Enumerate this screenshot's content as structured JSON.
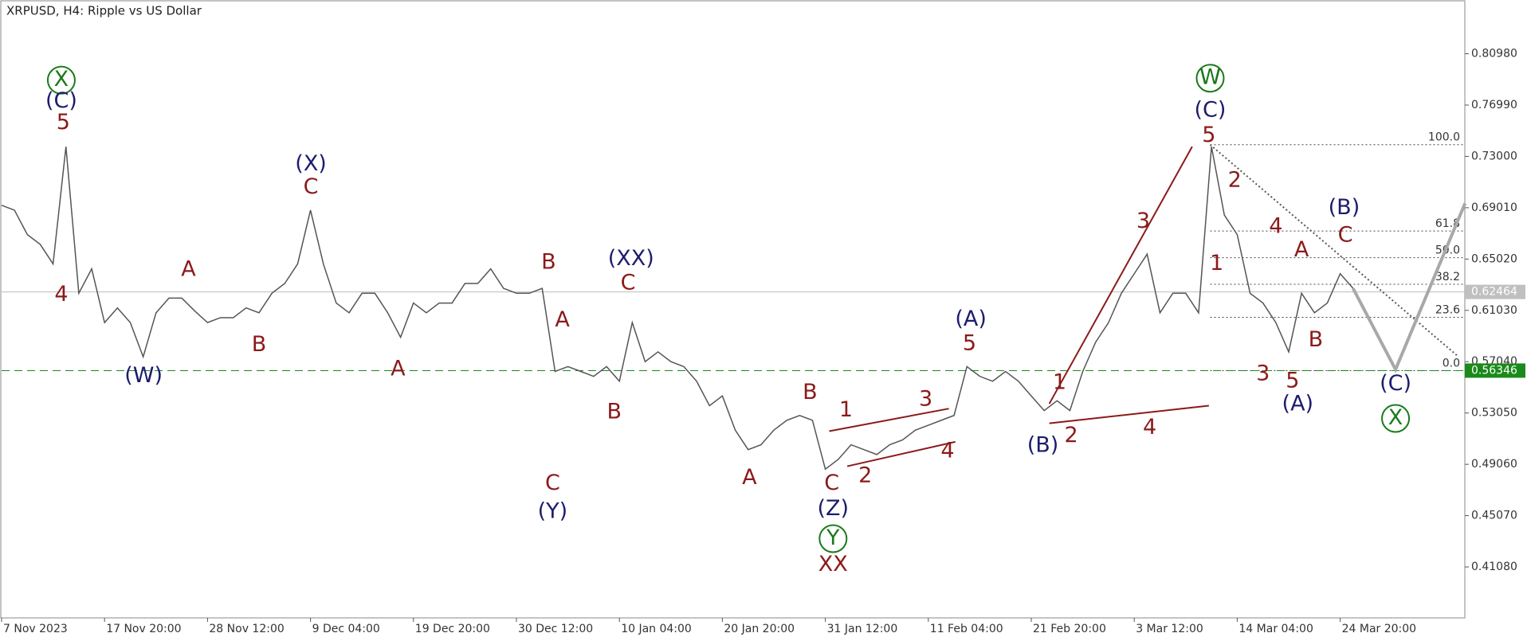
{
  "chart_data": {
    "type": "line",
    "title": "XRPUSD, H4:  Ripple vs US Dollar",
    "color": "#555555",
    "categories": [
      "7 Nov 2023",
      null,
      null,
      null,
      null,
      null,
      null,
      null,
      "17 Nov 20:00",
      null,
      null,
      null,
      null,
      null,
      null,
      null,
      "28 Nov 12:00",
      null,
      null,
      null,
      null,
      null,
      null,
      null,
      "9 Dec 04:00",
      null,
      null,
      null,
      null,
      null,
      null,
      null,
      "19 Dec 20:00",
      null,
      null,
      null,
      null,
      null,
      null,
      null,
      "30 Dec 12:00",
      null,
      null,
      null,
      null,
      null,
      null,
      null,
      "10 Jan 04:00",
      null,
      null,
      null,
      null,
      null,
      null,
      null,
      "20 Jan 20:00",
      null,
      null,
      null,
      null,
      null,
      null,
      null,
      "31 Jan 12:00",
      null,
      null,
      null,
      null,
      null,
      null,
      null,
      "11 Feb 04:00",
      null,
      null,
      null,
      null,
      null,
      null,
      null,
      "21 Feb 20:00",
      null,
      null,
      null,
      null,
      null,
      null,
      null,
      "3 Mar 12:00",
      null,
      null,
      null,
      null,
      null,
      null,
      null,
      "14 Mar 04:00",
      null,
      null,
      null,
      null,
      null,
      null,
      null,
      "24 Mar 20:00",
      null,
      null,
      null,
      null,
      null,
      null,
      null,
      null,
      null
    ],
    "values": [
      0.692,
      0.6882,
      0.6692,
      0.6616,
      0.6464,
      0.7376,
      0.6236,
      0.6426,
      0.6008,
      0.6122,
      0.6008,
      0.5742,
      0.6084,
      0.6198,
      0.6198,
      0.6099,
      0.6008,
      0.6046,
      0.6046,
      0.6122,
      0.6084,
      0.6236,
      0.6312,
      0.6464,
      0.6882,
      0.6464,
      0.616,
      0.6084,
      0.6236,
      0.6236,
      0.6084,
      0.5894,
      0.616,
      0.6084,
      0.616,
      0.616,
      0.6312,
      0.6312,
      0.6426,
      0.6274,
      0.6236,
      0.6236,
      0.6274,
      0.5628,
      0.5666,
      0.5628,
      0.559,
      0.5666,
      0.5552,
      0.6008,
      0.5704,
      0.578,
      0.5704,
      0.5666,
      0.5552,
      0.5362,
      0.5438,
      0.5172,
      0.502,
      0.5058,
      0.5172,
      0.5248,
      0.5286,
      0.5248,
      0.4868,
      0.4944,
      0.5058,
      0.502,
      0.4982,
      0.5058,
      0.5096,
      0.5172,
      0.521,
      0.5248,
      0.5286,
      0.5666,
      0.559,
      0.5552,
      0.5628,
      0.5552,
      0.5438,
      0.5324,
      0.54,
      0.5324,
      0.5628,
      0.5856,
      0.6008,
      0.6236,
      0.6388,
      0.654,
      0.6084,
      0.6236,
      0.6236,
      0.6084,
      0.7376,
      0.6844,
      0.6692,
      0.6236,
      0.616,
      0.6008,
      0.578,
      0.6236,
      0.6084,
      0.616,
      0.6388,
      0.6274,
      null,
      null,
      null,
      null,
      null,
      null,
      null,
      null
    ],
    "ylim": [
      0.3712,
      0.8516
    ],
    "yticks": [
      {
        "value": 0.8098,
        "label": "0.80980"
      },
      {
        "value": 0.7699,
        "label": "0.76990"
      },
      {
        "value": 0.73,
        "label": "0.73000"
      },
      {
        "value": 0.6901,
        "label": "0.69010"
      },
      {
        "value": 0.6502,
        "label": "0.65020"
      },
      {
        "value": 0.6103,
        "label": "0.61030"
      },
      {
        "value": 0.5704,
        "label": "0.57040"
      },
      {
        "value": 0.5305,
        "label": "0.53050"
      },
      {
        "value": 0.4906,
        "label": "0.49060"
      },
      {
        "value": 0.4507,
        "label": "0.45070"
      },
      {
        "value": 0.4108,
        "label": "0.41080"
      }
    ],
    "current_price": {
      "value": 0.62464,
      "label": "0.62464"
    },
    "level_line": {
      "value": 0.56346,
      "label": "0.56346",
      "color": "#1a8a1a"
    },
    "fibonacci": {
      "high": 0.7391,
      "low": 0.56346,
      "start": 93.9,
      "levels": [
        {
          "value": 100,
          "label": "100.0"
        },
        61.8,
        {
          "value": 50,
          "label": "50.0"
        },
        38.2,
        23.6,
        {
          "value": 0,
          "label": "0.0"
        }
      ]
    },
    "trend_lines": [
      {
        "color": "#8b1a1a",
        "points": [
          [
            64.3,
            0.5164
          ],
          [
            73.6,
            0.5339
          ]
        ]
      },
      {
        "color": "#8b1a1a",
        "points": [
          [
            65.7,
            0.4891
          ],
          [
            74.1,
            0.5081
          ]
        ]
      },
      {
        "color": "#8b1a1a",
        "points": [
          [
            81.4,
            0.5377
          ],
          [
            92.5,
            0.7376
          ]
        ]
      },
      {
        "color": "#8b1a1a",
        "points": [
          [
            81.4,
            0.5225
          ],
          [
            93.8,
            0.5362
          ]
        ]
      },
      {
        "color": "#555555",
        "dashed": true,
        "points": [
          [
            93.9,
            0.7391
          ],
          [
            113.2,
            0.5742
          ]
        ]
      },
      {
        "color": "#a8a8a8",
        "width": 4,
        "points": [
          [
            105.0,
            0.6274
          ],
          [
            108.3,
            0.5643
          ],
          [
            113.7,
            0.6935
          ]
        ]
      }
    ],
    "annotations": [
      {
        "text": "X",
        "x": 4.64,
        "y": 0.7893,
        "color": "#1a7a1a",
        "circled": true
      },
      {
        "text": "(C)",
        "x": 4.64,
        "y": 0.7726,
        "color": "#1c1c6e"
      },
      {
        "text": "5",
        "x": 4.79,
        "y": 0.7558,
        "color": "#8b1a1a"
      },
      {
        "text": "4",
        "x": 4.64,
        "y": 0.6221,
        "color": "#8b1a1a"
      },
      {
        "text": "(W)",
        "x": 11.03,
        "y": 0.559,
        "color": "#1c1c6e"
      },
      {
        "text": "A",
        "x": 14.52,
        "y": 0.6418,
        "color": "#8b1a1a"
      },
      {
        "text": "B",
        "x": 20.0,
        "y": 0.5833,
        "color": "#8b1a1a"
      },
      {
        "text": "(X)",
        "x": 24.03,
        "y": 0.7239,
        "color": "#1c1c6e"
      },
      {
        "text": "C",
        "x": 24.03,
        "y": 0.7057,
        "color": "#8b1a1a"
      },
      {
        "text": "A",
        "x": 30.8,
        "y": 0.5643,
        "color": "#8b1a1a"
      },
      {
        "text": "B",
        "x": 42.5,
        "y": 0.6472,
        "color": "#8b1a1a"
      },
      {
        "text": "(XX)",
        "x": 48.9,
        "y": 0.6502,
        "color": "#1c1c6e"
      },
      {
        "text": "C",
        "x": 48.67,
        "y": 0.6312,
        "color": "#8b1a1a"
      },
      {
        "text": "A",
        "x": 43.57,
        "y": 0.6023,
        "color": "#8b1a1a"
      },
      {
        "text": "B",
        "x": 47.6,
        "y": 0.5309,
        "color": "#8b1a1a"
      },
      {
        "text": "C",
        "x": 42.81,
        "y": 0.4754,
        "color": "#8b1a1a"
      },
      {
        "text": "(Y)",
        "x": 42.81,
        "y": 0.4534,
        "color": "#1c1c6e"
      },
      {
        "text": "A",
        "x": 58.1,
        "y": 0.48,
        "color": "#8b1a1a"
      },
      {
        "text": "B",
        "x": 62.81,
        "y": 0.5461,
        "color": "#8b1a1a"
      },
      {
        "text": "1",
        "x": 65.6,
        "y": 0.5324,
        "color": "#8b1a1a"
      },
      {
        "text": "3",
        "x": 71.8,
        "y": 0.5408,
        "color": "#8b1a1a"
      },
      {
        "text": "2",
        "x": 67.1,
        "y": 0.4815,
        "color": "#8b1a1a"
      },
      {
        "text": "4",
        "x": 73.5,
        "y": 0.5005,
        "color": "#8b1a1a"
      },
      {
        "text": "C",
        "x": 64.5,
        "y": 0.4754,
        "color": "#8b1a1a"
      },
      {
        "text": "(Z)",
        "x": 64.6,
        "y": 0.4556,
        "color": "#1c1c6e"
      },
      {
        "text": "Y",
        "x": 64.6,
        "y": 0.4328,
        "color": "#1a7a1a",
        "circled": true
      },
      {
        "text": "XX",
        "x": 64.6,
        "y": 0.4123,
        "color": "#8b1a1a"
      },
      {
        "text": "(A)",
        "x": 75.3,
        "y": 0.6031,
        "color": "#1c1c6e"
      },
      {
        "text": "5",
        "x": 75.2,
        "y": 0.5841,
        "color": "#8b1a1a"
      },
      {
        "text": "(B)",
        "x": 80.9,
        "y": 0.505,
        "color": "#1c1c6e"
      },
      {
        "text": "1",
        "x": 82.2,
        "y": 0.5537,
        "color": "#8b1a1a"
      },
      {
        "text": "2",
        "x": 83.1,
        "y": 0.5126,
        "color": "#8b1a1a"
      },
      {
        "text": "3",
        "x": 88.7,
        "y": 0.6791,
        "color": "#8b1a1a"
      },
      {
        "text": "4",
        "x": 89.2,
        "y": 0.5187,
        "color": "#8b1a1a"
      },
      {
        "text": "W",
        "x": 93.9,
        "y": 0.7908,
        "color": "#1a7a1a",
        "circled": true
      },
      {
        "text": "(C)",
        "x": 93.9,
        "y": 0.7657,
        "color": "#1c1c6e"
      },
      {
        "text": "5",
        "x": 93.8,
        "y": 0.746,
        "color": "#8b1a1a"
      },
      {
        "text": "1",
        "x": 94.4,
        "y": 0.6464,
        "color": "#8b1a1a"
      },
      {
        "text": "2",
        "x": 95.8,
        "y": 0.711,
        "color": "#8b1a1a"
      },
      {
        "text": "4",
        "x": 99.0,
        "y": 0.6753,
        "color": "#8b1a1a"
      },
      {
        "text": "3",
        "x": 98.0,
        "y": 0.5605,
        "color": "#8b1a1a"
      },
      {
        "text": "5",
        "x": 100.3,
        "y": 0.5552,
        "color": "#8b1a1a"
      },
      {
        "text": "(A)",
        "x": 100.7,
        "y": 0.537,
        "color": "#1c1c6e"
      },
      {
        "text": "A",
        "x": 101.0,
        "y": 0.657,
        "color": "#8b1a1a"
      },
      {
        "text": "B",
        "x": 102.1,
        "y": 0.5871,
        "color": "#8b1a1a"
      },
      {
        "text": "C",
        "x": 104.4,
        "y": 0.6684,
        "color": "#8b1a1a"
      },
      {
        "text": "(B)",
        "x": 104.3,
        "y": 0.6897,
        "color": "#1c1c6e"
      },
      {
        "text": "(C)",
        "x": 108.3,
        "y": 0.5529,
        "color": "#1c1c6e"
      },
      {
        "text": "X",
        "x": 108.3,
        "y": 0.5263,
        "color": "#1a7a1a",
        "circled": true
      }
    ]
  }
}
